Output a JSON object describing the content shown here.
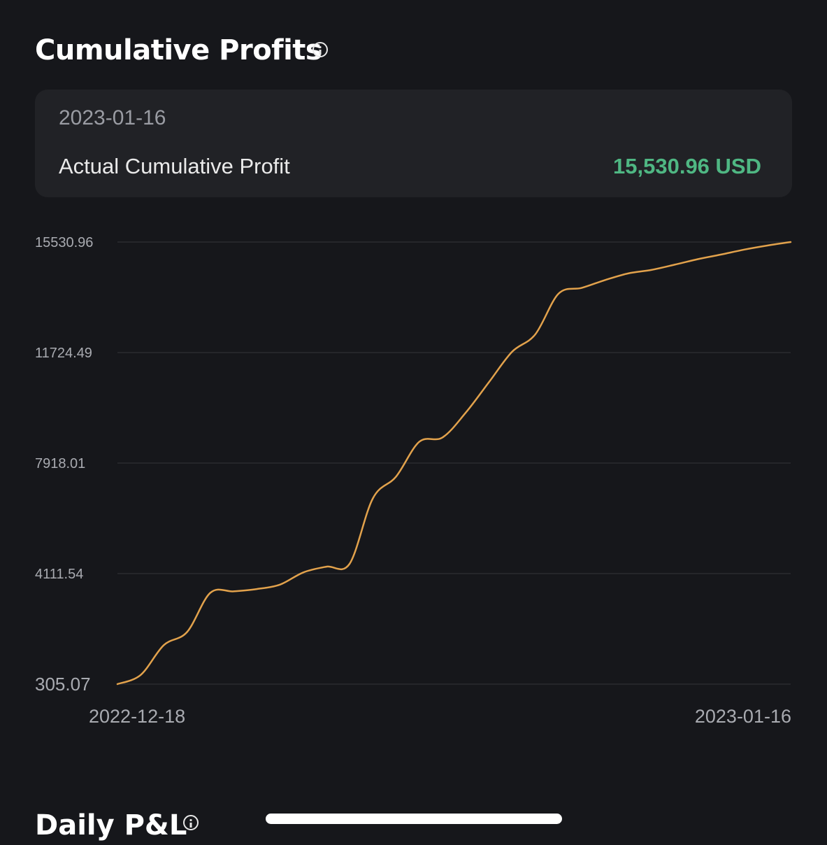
{
  "header": {
    "title": "Cumulative Profits",
    "info_icon": "info-icon"
  },
  "summary": {
    "date": "2023-01-16",
    "label": "Actual Cumulative Profit",
    "value": "15,530.96 USD",
    "value_color": "#4fb783"
  },
  "chart_data": {
    "type": "line",
    "line_color": "#e2a24c",
    "ylim": [
      305.07,
      15530.96
    ],
    "yticks": [
      "15530.96",
      "11724.49",
      "7918.01",
      "4111.54",
      "305.07"
    ],
    "ytick_values": [
      15530.96,
      11724.49,
      7918.01,
      4111.54,
      305.07
    ],
    "xticks": [
      "2022-12-18",
      "2023-01-16"
    ],
    "grid": true,
    "series": [
      {
        "x": [
          "2022-12-18",
          "2022-12-19",
          "2022-12-20",
          "2022-12-21",
          "2022-12-22",
          "2022-12-23",
          "2022-12-24",
          "2022-12-25",
          "2022-12-26",
          "2022-12-27",
          "2022-12-28",
          "2022-12-29",
          "2022-12-30",
          "2022-12-31",
          "2023-01-01",
          "2023-01-02",
          "2023-01-03",
          "2023-01-04",
          "2023-01-05",
          "2023-01-06",
          "2023-01-07",
          "2023-01-08",
          "2023-01-09",
          "2023-01-10",
          "2023-01-11",
          "2023-01-12",
          "2023-01-13",
          "2023-01-14",
          "2023-01-15",
          "2023-01-16"
        ],
        "values": [
          305,
          620,
          1650,
          2100,
          3450,
          3500,
          3580,
          3730,
          4150,
          4350,
          4450,
          6700,
          7450,
          8650,
          8800,
          9650,
          10700,
          11750,
          12350,
          13750,
          13950,
          14220,
          14450,
          14570,
          14750,
          14940,
          15100,
          15270,
          15410,
          15531
        ]
      }
    ]
  },
  "footer": {
    "title": "Daily P&L",
    "info_icon": "info-icon"
  }
}
